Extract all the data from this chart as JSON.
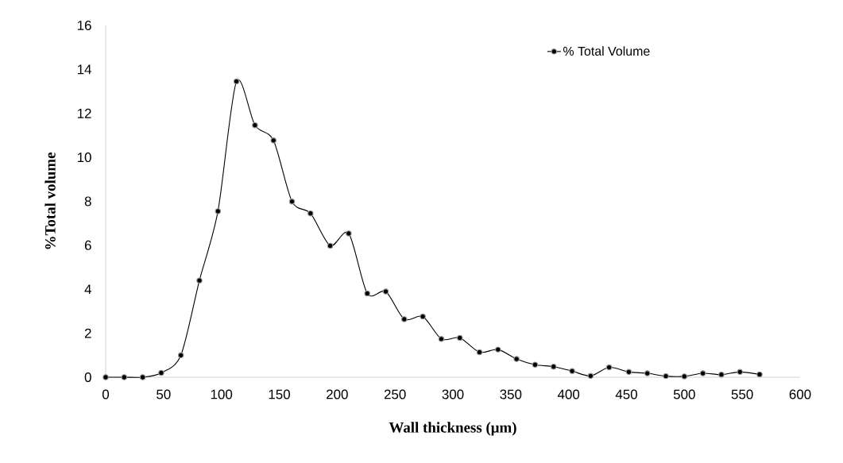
{
  "chart_data": {
    "type": "line",
    "xlabel": "Wall thickness (μm)",
    "ylabel": "%Total volume",
    "x": [
      0,
      16,
      32,
      48,
      65,
      81,
      97,
      113,
      129,
      145,
      161,
      177,
      194,
      210,
      226,
      242,
      258,
      274,
      290,
      306,
      323,
      339,
      355,
      371,
      387,
      403,
      419,
      435,
      452,
      468,
      484,
      500,
      516,
      532,
      548,
      565
    ],
    "series": [
      {
        "name": "% Total Volume",
        "color": "#000000",
        "values": [
          0,
          0,
          0,
          0.2,
          1.0,
          4.4,
          7.55,
          13.45,
          11.46,
          10.77,
          7.99,
          7.45,
          5.98,
          6.54,
          3.81,
          3.9,
          2.64,
          2.76,
          1.74,
          1.79,
          1.14,
          1.26,
          0.83,
          0.57,
          0.48,
          0.28,
          0.06,
          0.45,
          0.24,
          0.18,
          0.05,
          0.04,
          0.18,
          0.12,
          0.24,
          0.13
        ]
      }
    ],
    "xlim": [
      0,
      600
    ],
    "xticks": [
      0,
      50,
      100,
      150,
      200,
      250,
      300,
      350,
      400,
      450,
      500,
      550,
      600
    ],
    "ylim": [
      0,
      16
    ],
    "yticks": [
      0,
      2,
      4,
      6,
      8,
      10,
      12,
      14,
      16
    ],
    "legend": "top right",
    "marker": "circle",
    "line_style": "solid",
    "grid": false
  }
}
